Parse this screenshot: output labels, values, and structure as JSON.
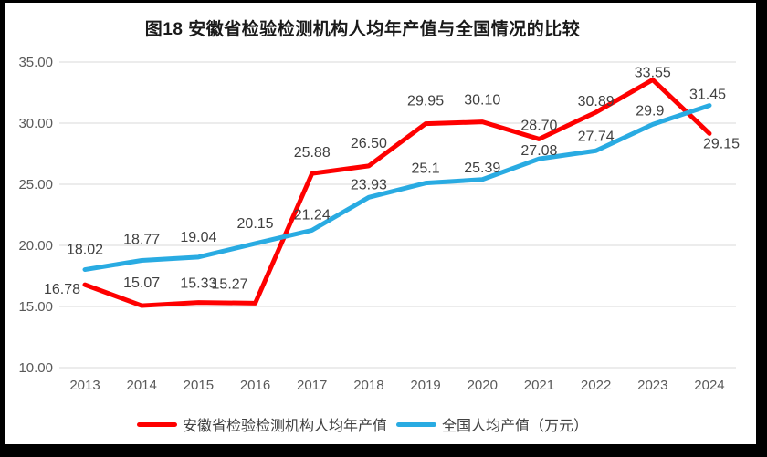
{
  "chart_data": {
    "type": "line",
    "title": "图18 安徽省检验检测机构人均年产值与全国情况的比较",
    "categories": [
      "2013",
      "2014",
      "2015",
      "2016",
      "2017",
      "2018",
      "2019",
      "2020",
      "2021",
      "2022",
      "2023",
      "2024"
    ],
    "series": [
      {
        "name": "安徽省检验检测机构人均年产值",
        "color": "#FE0000",
        "values": [
          16.78,
          15.07,
          15.33,
          15.27,
          25.88,
          26.5,
          29.95,
          30.1,
          28.7,
          30.89,
          33.55,
          29.15
        ],
        "labels": [
          "16.78",
          "15.07",
          "15.33",
          "15.27",
          "25.88",
          "26.50",
          "29.95",
          "30.10",
          "28.70",
          "30.89",
          "33.55",
          "29.15"
        ]
      },
      {
        "name": "全国人均产值（万元）",
        "color": "#29ABE2",
        "values": [
          18.02,
          18.77,
          19.04,
          20.15,
          21.24,
          23.93,
          25.1,
          25.39,
          27.08,
          27.74,
          29.9,
          31.45
        ],
        "labels": [
          "18.02",
          "18.77",
          "19.04",
          "20.15",
          "21.24",
          "23.93",
          "25.1",
          "25.39",
          "27.08",
          "27.74",
          "29.9",
          "31.45"
        ]
      }
    ],
    "y_ticks": [
      "35.00",
      "30.00",
      "25.00",
      "20.00",
      "15.00",
      "10.00"
    ],
    "ylim": [
      10,
      35
    ],
    "grid": true,
    "legend_position": "bottom",
    "colors": {
      "gridline": "#D9D9D9",
      "axis_text": "#595959",
      "label_text": "#404040",
      "title_text": "#1A1A1A"
    }
  }
}
